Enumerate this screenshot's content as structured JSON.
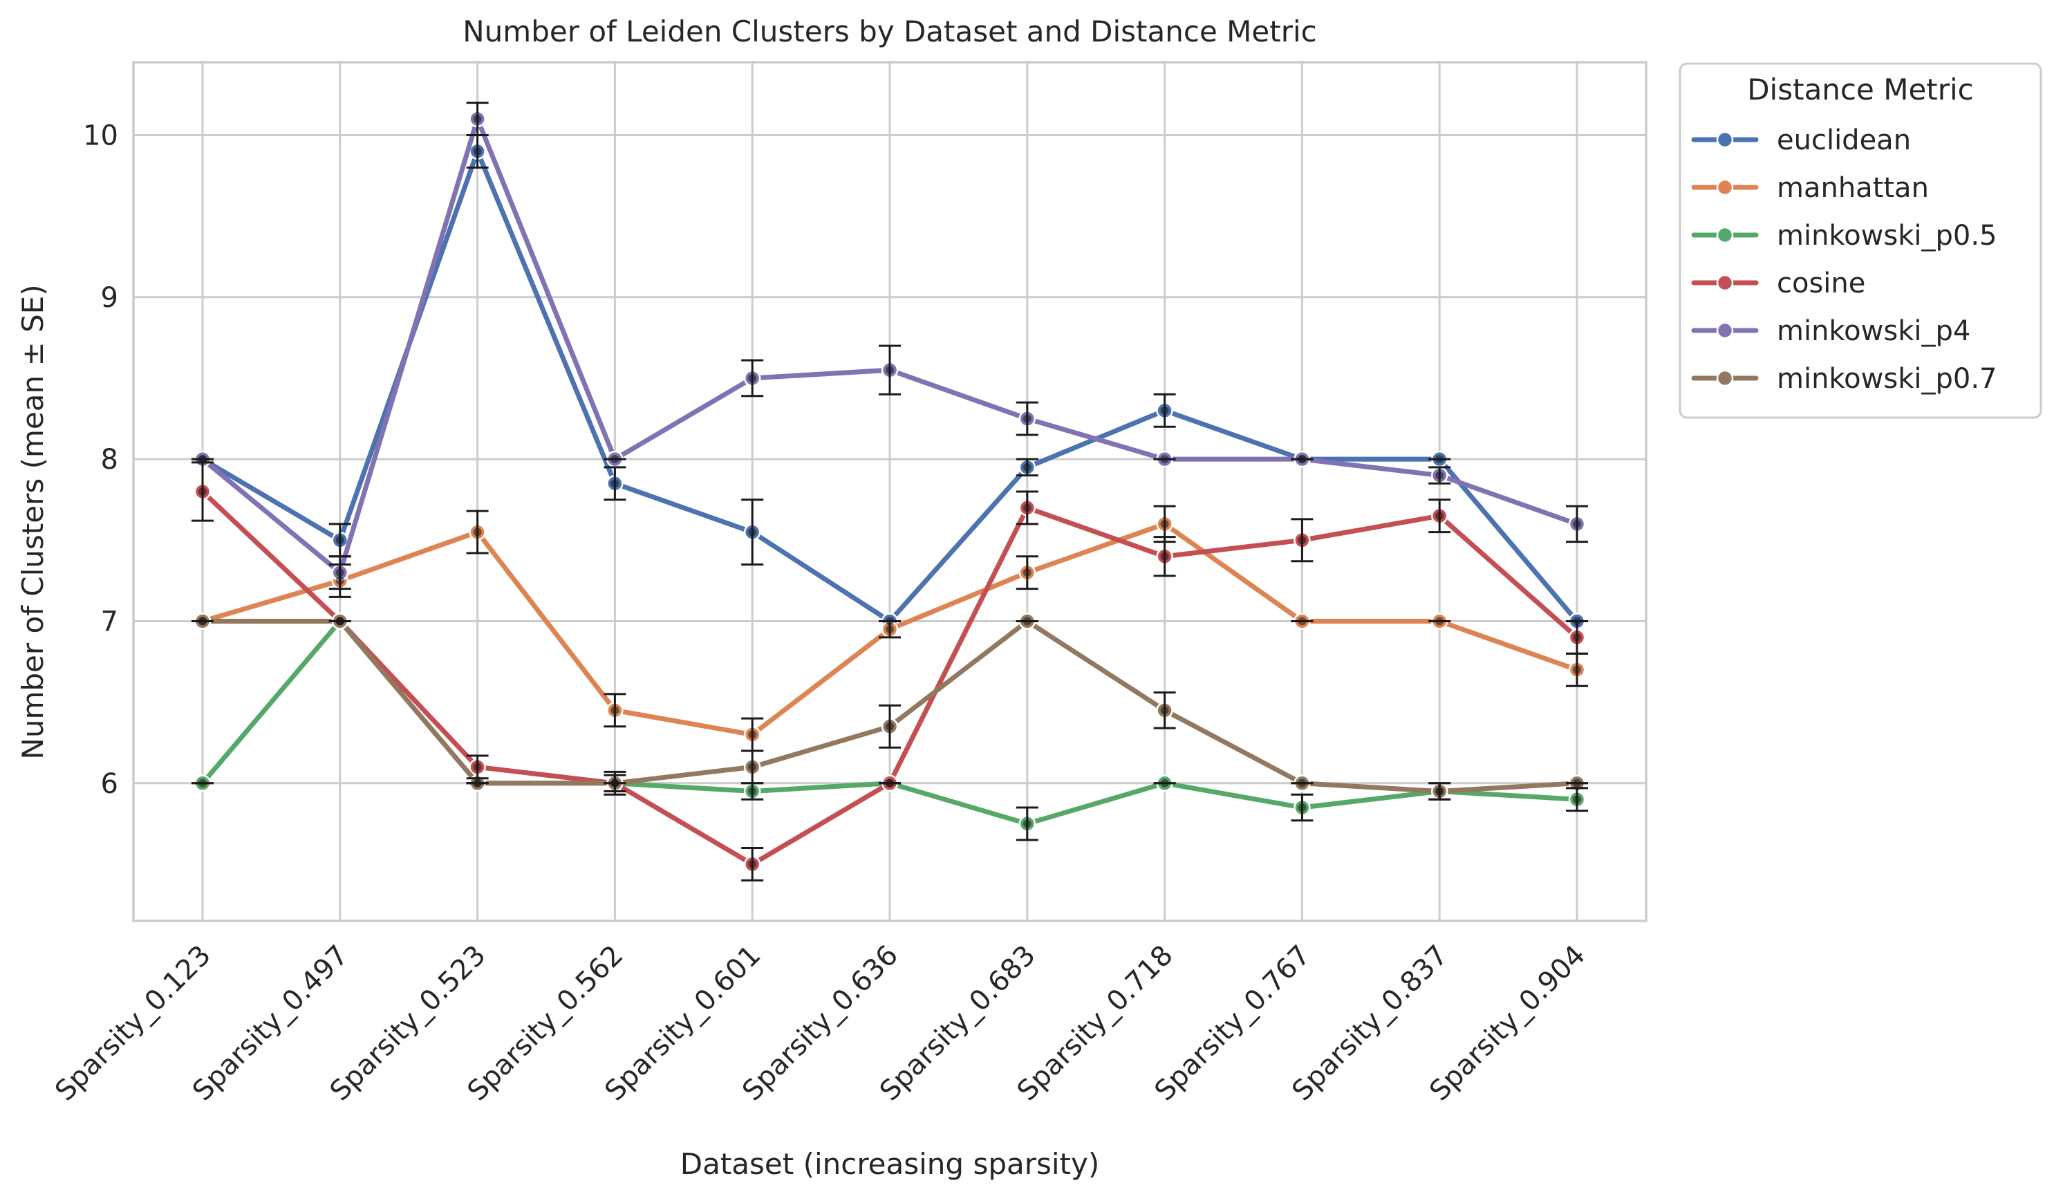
{
  "chart_data": {
    "type": "line",
    "title": "Number of Leiden Clusters by Dataset and Distance Metric",
    "xlabel": "Dataset (increasing sparsity)",
    "ylabel": "Number of Clusters (mean ± SE)",
    "categories": [
      "Sparsity_0.123",
      "Sparsity_0.497",
      "Sparsity_0.523",
      "Sparsity_0.562",
      "Sparsity_0.601",
      "Sparsity_0.636",
      "Sparsity_0.683",
      "Sparsity_0.718",
      "Sparsity_0.767",
      "Sparsity_0.837",
      "Sparsity_0.904"
    ],
    "ylim": [
      5.15,
      10.45
    ],
    "yticks": [
      6,
      7,
      8,
      9,
      10
    ],
    "grid": true,
    "legend": {
      "title": "Distance Metric",
      "placement": "outside-right-top"
    },
    "series": [
      {
        "name": "euclidean",
        "color": "#4c72b0",
        "values": [
          8.0,
          7.5,
          9.9,
          7.85,
          7.55,
          7.0,
          7.95,
          8.3,
          8.0,
          8.0,
          7.0
        ],
        "se": [
          0.0,
          0.1,
          0.1,
          0.1,
          0.2,
          0.0,
          0.05,
          0.1,
          0.0,
          0.0,
          0.0
        ]
      },
      {
        "name": "manhattan",
        "color": "#dd8452",
        "values": [
          7.0,
          7.25,
          7.55,
          6.45,
          6.3,
          6.95,
          7.3,
          7.6,
          7.0,
          7.0,
          6.7
        ],
        "se": [
          0.0,
          0.1,
          0.13,
          0.1,
          0.1,
          0.05,
          0.1,
          0.11,
          0.0,
          0.0,
          0.1
        ]
      },
      {
        "name": "minkowski_p0.5",
        "color": "#55a868",
        "values": [
          6.0,
          7.0,
          6.0,
          6.0,
          5.95,
          6.0,
          5.75,
          6.0,
          5.85,
          5.95,
          5.9
        ],
        "se": [
          0.0,
          0.0,
          0.0,
          0.0,
          0.05,
          0.0,
          0.1,
          0.0,
          0.08,
          0.05,
          0.07
        ]
      },
      {
        "name": "cosine",
        "color": "#c44e52",
        "values": [
          7.8,
          7.0,
          6.1,
          6.0,
          5.5,
          6.0,
          7.7,
          7.4,
          7.5,
          7.65,
          6.9
        ],
        "se": [
          0.18,
          0.0,
          0.07,
          0.07,
          0.1,
          0.0,
          0.1,
          0.12,
          0.13,
          0.1,
          0.1
        ]
      },
      {
        "name": "minkowski_p4",
        "color": "#8172b3",
        "values": [
          8.0,
          7.3,
          10.1,
          8.0,
          8.5,
          8.55,
          8.25,
          8.0,
          8.0,
          7.9,
          7.6
        ],
        "se": [
          0.0,
          0.1,
          0.1,
          0.0,
          0.11,
          0.15,
          0.1,
          0.0,
          0.0,
          0.05,
          0.11
        ]
      },
      {
        "name": "minkowski_p0.7",
        "color": "#937860",
        "values": [
          7.0,
          7.0,
          6.0,
          6.0,
          6.1,
          6.35,
          7.0,
          6.45,
          6.0,
          5.95,
          6.0
        ],
        "se": [
          0.0,
          0.0,
          0.0,
          0.05,
          0.1,
          0.13,
          0.0,
          0.11,
          0.0,
          0.05,
          0.0
        ]
      }
    ]
  }
}
